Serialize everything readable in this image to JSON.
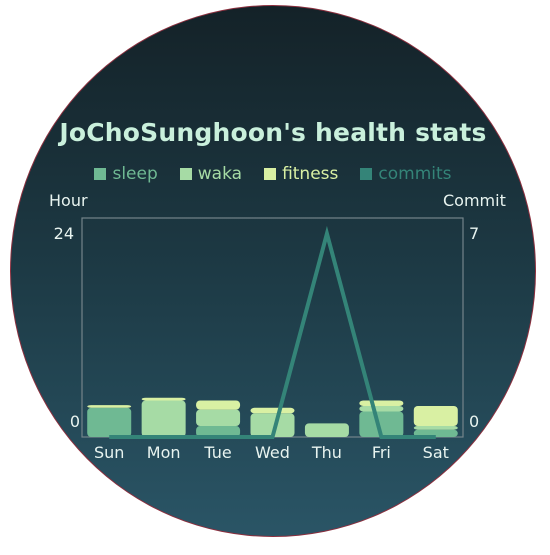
{
  "chart_data": {
    "type": "bar",
    "title": "JoChoSunghoon's health stats",
    "categories": [
      "Sun",
      "Mon",
      "Tue",
      "Wed",
      "Thu",
      "Fri",
      "Sat"
    ],
    "series": [
      {
        "name": "sleep",
        "kind": "stacked-bar",
        "color": "#6fb993",
        "values": [
          3.2,
          0,
          1.2,
          0,
          0,
          2.8,
          0.8
        ]
      },
      {
        "name": "waka",
        "kind": "stacked-bar",
        "color": "#a6dba5",
        "values": [
          0,
          4.0,
          1.8,
          2.6,
          1.5,
          0.6,
          0.4
        ]
      },
      {
        "name": "fitness",
        "kind": "stacked-bar",
        "color": "#d9f0a3",
        "values": [
          0.3,
          0.3,
          1.0,
          0.6,
          0,
          0.6,
          2.2
        ]
      },
      {
        "name": "commits",
        "kind": "line",
        "axis": "right",
        "color": "#348478",
        "values": [
          0,
          0,
          0,
          0,
          6.5,
          0,
          0
        ]
      }
    ],
    "y_left": {
      "label": "Hour",
      "range": [
        0,
        24
      ],
      "ticks": [
        "0",
        "24"
      ]
    },
    "y_right": {
      "label": "Commit",
      "range": [
        0,
        7
      ],
      "ticks": [
        "0",
        "7"
      ]
    },
    "legend": "top-center",
    "grid": false
  }
}
